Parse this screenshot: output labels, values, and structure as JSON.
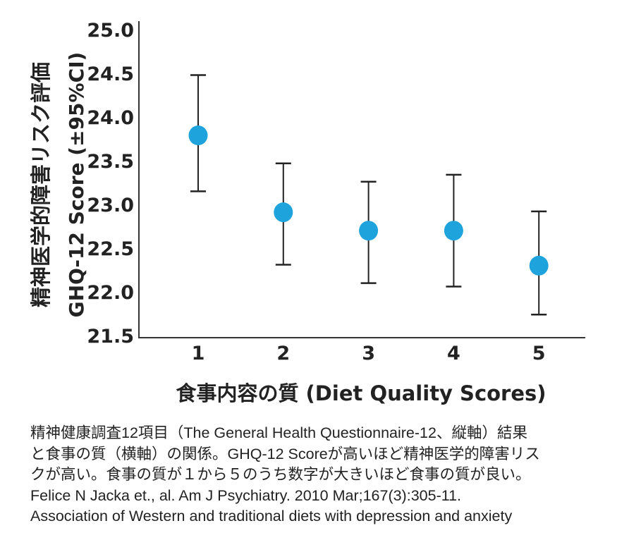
{
  "chart_data": {
    "type": "scatter",
    "title": "",
    "ylabel_ja": "精神医学的障害リスク評価",
    "ylabel": "GHQ-12 Score (±95%CI)",
    "xlabel": "食事内容の質 (Diet Quality Scores)",
    "ylim": [
      21.5,
      25.0
    ],
    "yticks": [
      "25.0",
      "24.5",
      "24.0",
      "23.5",
      "23.0",
      "22.5",
      "22.0",
      "21.5"
    ],
    "categories": [
      "1",
      "2",
      "3",
      "4",
      "5"
    ],
    "values": [
      23.79,
      22.91,
      22.7,
      22.7,
      22.3
    ],
    "ci_upper": [
      24.48,
      23.47,
      23.26,
      23.34,
      22.92
    ],
    "ci_lower": [
      23.15,
      22.31,
      22.1,
      22.06,
      21.74
    ],
    "marker_color": "#1ea3dc",
    "grid": false
  },
  "caption": [
    "精神健康調査12項目（The General Health Questionnaire-12、縦軸）結果",
    "と食事の質（横軸）の関係。GHQ-12 Scoreが高いほど精神医学的障害リス",
    "クが高い。食事の質が１から５のうち数字が大きいほど食事の質が良い。",
    "Felice N Jacka et., al. Am J Psychiatry. 2010 Mar;167(3):305-11.",
    "Association of Western and traditional diets with depression and anxiety"
  ]
}
